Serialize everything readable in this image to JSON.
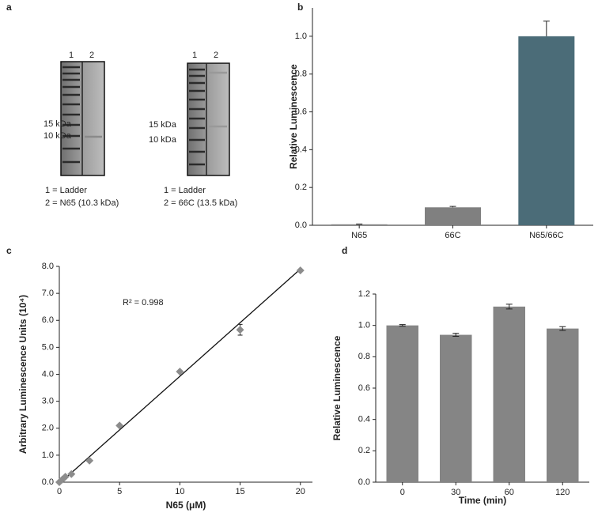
{
  "panel_labels": [
    "a",
    "b",
    "c",
    "d"
  ],
  "gels": [
    {
      "lanes": [
        "1",
        "2"
      ],
      "markers": [
        "15 kDa",
        "10 kDa"
      ],
      "legend": [
        "1 = Ladder",
        "2 = N65 (10.3 kDa)"
      ]
    },
    {
      "lanes": [
        "1",
        "2"
      ],
      "markers": [
        "15 kDa",
        "10 kDa"
      ],
      "legend": [
        "1 = Ladder",
        "2 = 66C (13.5 kDa)"
      ]
    }
  ],
  "chart_data": [
    {
      "type": "bar",
      "ylabel": "Relative Luminescence",
      "categories": [
        "N65",
        "66C",
        "N65/66C"
      ],
      "values": [
        0.005,
        0.095,
        1.0
      ],
      "errors": [
        0.002,
        0.005,
        0.08
      ],
      "colors": [
        "#808080",
        "#808080",
        "#4b6c78"
      ],
      "ylim": [
        0,
        1.15
      ],
      "yticks": [
        {
          "value": 0,
          "label": "0.0"
        },
        0.2,
        0.4,
        0.6,
        0.8,
        {
          "value": 1,
          "label": "1.0"
        }
      ]
    },
    {
      "type": "scatter",
      "xlabel": "N65 (μM)",
      "ylabel": "Arbitrary Luminescence Units (10⁴)",
      "annotation": "R² = 0.998",
      "x": [
        0,
        0.25,
        0.5,
        1,
        2.5,
        5,
        10,
        15,
        20
      ],
      "values": [
        0,
        0.1,
        0.2,
        0.3,
        0.8,
        2.1,
        4.1,
        5.65,
        7.85
      ],
      "errors": [
        null,
        null,
        null,
        null,
        null,
        null,
        null,
        0.2,
        null
      ],
      "color": "#8c8c8c",
      "fit": {
        "x": [
          0,
          20
        ],
        "y": [
          -0.05,
          7.9
        ]
      },
      "xlim": [
        0,
        21
      ],
      "ylim": [
        0,
        8
      ],
      "xticks": [
        0,
        5,
        10,
        15,
        20
      ],
      "yticks": [
        {
          "value": 0,
          "label": "0.0"
        },
        {
          "value": 1,
          "label": "1.0"
        },
        {
          "value": 2,
          "label": "2.0"
        },
        {
          "value": 3,
          "label": "3.0"
        },
        {
          "value": 4,
          "label": "4.0"
        },
        {
          "value": 5,
          "label": "5.0"
        },
        {
          "value": 6,
          "label": "6.0"
        },
        {
          "value": 7,
          "label": "7.0"
        },
        {
          "value": 8,
          "label": "8.0"
        }
      ]
    },
    {
      "type": "bar",
      "xlabel": "Time (min)",
      "ylabel": "Relative Luminescence",
      "categories": [
        "0",
        "30",
        "60",
        "120"
      ],
      "values": [
        1.0,
        0.94,
        1.12,
        0.98
      ],
      "errors": [
        0.005,
        0.01,
        0.015,
        0.012
      ],
      "colors": [
        "#858585",
        "#858585",
        "#858585",
        "#858585"
      ],
      "ylim": [
        0,
        1.2
      ],
      "yticks": [
        {
          "value": 0,
          "label": "0.0"
        },
        0.2,
        0.4,
        0.6,
        0.8,
        {
          "value": 1,
          "label": "1.0"
        },
        1.2
      ]
    }
  ]
}
